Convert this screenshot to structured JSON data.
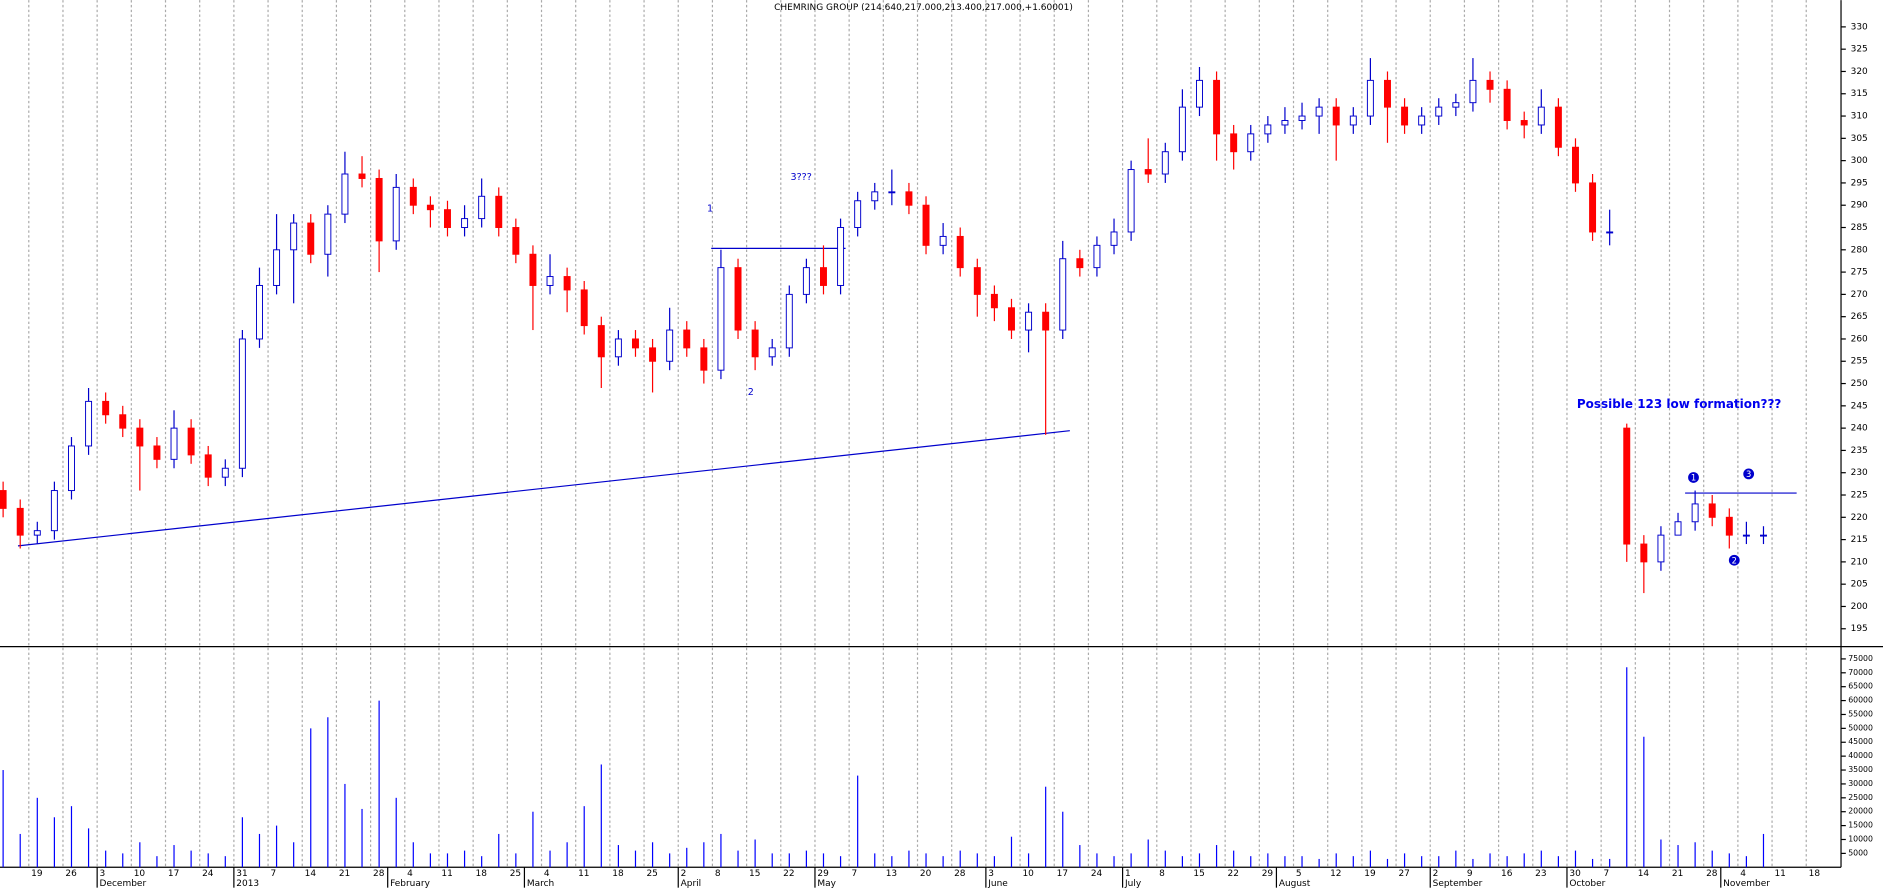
{
  "chart_data": {
    "type": "candlestick",
    "title": "CHEMRING GROUP (214.640,217.000,213.400,217.000,+1.60001)",
    "categories": [
      null,
      null,
      "19",
      null,
      "26",
      null,
      "3",
      null,
      "10",
      null,
      "17",
      null,
      "24",
      null,
      "31",
      null,
      "7",
      null,
      "14",
      null,
      "21",
      null,
      "28",
      null,
      "4",
      null,
      "11",
      null,
      "18",
      null,
      "25",
      null,
      "4",
      null,
      "11",
      null,
      "18",
      null,
      "25",
      null,
      "2",
      null,
      "8",
      null,
      "15",
      null,
      "22",
      null,
      "29",
      null,
      "7",
      null,
      "13",
      null,
      "20",
      null,
      "28",
      null,
      "3",
      null,
      "10",
      null,
      "17",
      null,
      "24",
      null,
      "1",
      null,
      "8",
      null,
      "15",
      null,
      "22",
      null,
      "29",
      null,
      "5",
      null,
      "12",
      null,
      "19",
      null,
      "27",
      null,
      "2",
      null,
      "9",
      null,
      "16",
      null,
      "23",
      null,
      "30",
      null,
      "7",
      null,
      "14",
      null,
      "21",
      null,
      "28",
      null,
      "4",
      null,
      "11",
      null,
      "18",
      null
    ],
    "month_labels": [
      null,
      null,
      null,
      null,
      null,
      null,
      "December",
      null,
      null,
      null,
      null,
      null,
      null,
      null,
      "2013",
      null,
      null,
      null,
      null,
      null,
      null,
      null,
      null,
      "February",
      null,
      null,
      null,
      null,
      null,
      null,
      null,
      "March",
      null,
      null,
      null,
      null,
      null,
      null,
      null,
      null,
      "April",
      null,
      null,
      null,
      null,
      null,
      null,
      null,
      "May",
      null,
      null,
      null,
      null,
      null,
      null,
      null,
      null,
      null,
      "June",
      null,
      null,
      null,
      null,
      null,
      null,
      null,
      "July",
      null,
      null,
      null,
      null,
      null,
      null,
      null,
      null,
      "August",
      null,
      null,
      null,
      null,
      null,
      null,
      null,
      null,
      "September",
      null,
      null,
      null,
      null,
      null,
      null,
      null,
      "October",
      null,
      null,
      null,
      null,
      null,
      null,
      null,
      null,
      "November",
      null,
      null,
      null,
      null,
      null,
      null
    ],
    "open": [
      226,
      222,
      216,
      217,
      226,
      236,
      246,
      243,
      240,
      236,
      233,
      240,
      234,
      229,
      231,
      260,
      272,
      280,
      286,
      279,
      288,
      297,
      296,
      282,
      294,
      290,
      289,
      285,
      287,
      292,
      285,
      279,
      272,
      274,
      271,
      263,
      256,
      260,
      258,
      255,
      262,
      258,
      253,
      276,
      262,
      256,
      258,
      270,
      276,
      272,
      285,
      291,
      293,
      293,
      290,
      281,
      283,
      276,
      270,
      267,
      262,
      266,
      262,
      278,
      276,
      281,
      284,
      298,
      297,
      302,
      312,
      318,
      306,
      302,
      306,
      308,
      309,
      310,
      312,
      308,
      310,
      318,
      312,
      308,
      310,
      312,
      313,
      318,
      316,
      309,
      308,
      312,
      303,
      295,
      284,
      240,
      214,
      210,
      216,
      219,
      223,
      220,
      216,
      216,
      null,
      null,
      null,
      null
    ],
    "high": [
      228,
      224,
      219,
      228,
      238,
      249,
      248,
      245,
      242,
      238,
      244,
      242,
      236,
      233,
      262,
      276,
      288,
      288,
      288,
      290,
      302,
      301,
      298,
      297,
      296,
      292,
      291,
      290,
      296,
      294,
      287,
      281,
      279,
      276,
      273,
      265,
      262,
      262,
      260,
      267,
      264,
      260,
      280,
      278,
      264,
      260,
      272,
      278,
      281,
      287,
      293,
      295,
      298,
      295,
      292,
      286,
      285,
      278,
      272,
      269,
      268,
      268,
      282,
      280,
      283,
      287,
      300,
      305,
      304,
      316,
      321,
      320,
      308,
      308,
      310,
      312,
      313,
      314,
      314,
      312,
      323,
      320,
      314,
      312,
      314,
      315,
      323,
      320,
      318,
      311,
      316,
      314,
      305,
      297,
      289,
      241,
      216,
      218,
      221,
      226,
      225,
      222,
      219,
      218,
      null,
      null,
      null,
      null
    ],
    "low": [
      220,
      213,
      214,
      215,
      224,
      234,
      241,
      238,
      226,
      231,
      231,
      232,
      227,
      227,
      229,
      258,
      270,
      268,
      277,
      274,
      286,
      294,
      275,
      280,
      288,
      285,
      283,
      283,
      285,
      283,
      277,
      262,
      270,
      266,
      261,
      249,
      254,
      256,
      248,
      253,
      256,
      250,
      251,
      260,
      253,
      254,
      256,
      268,
      270,
      270,
      283,
      289,
      290,
      288,
      279,
      279,
      274,
      265,
      264,
      260,
      257,
      238.5,
      260,
      274,
      274,
      279,
      282,
      295,
      295,
      300,
      310,
      300,
      298,
      300,
      304,
      306,
      307,
      306,
      300,
      306,
      308,
      304,
      306,
      306,
      308,
      310,
      311,
      313,
      307,
      305,
      306,
      301,
      293,
      282,
      281,
      210,
      203,
      208,
      216,
      217,
      218,
      213,
      214,
      214,
      null,
      null,
      null,
      null
    ],
    "close": [
      222,
      216,
      217,
      226,
      236,
      246,
      243,
      240,
      236,
      233,
      240,
      234,
      229,
      231,
      260,
      272,
      280,
      286,
      279,
      288,
      297,
      296,
      282,
      294,
      290,
      289,
      285,
      287,
      292,
      285,
      279,
      272,
      274,
      271,
      263,
      256,
      260,
      258,
      255,
      262,
      258,
      253,
      276,
      262,
      256,
      258,
      270,
      276,
      272,
      285,
      291,
      293,
      293,
      290,
      281,
      283,
      276,
      270,
      267,
      262,
      266,
      262,
      278,
      276,
      281,
      284,
      298,
      297,
      302,
      312,
      318,
      306,
      302,
      306,
      308,
      309,
      310,
      312,
      308,
      310,
      318,
      312,
      308,
      310,
      312,
      313,
      318,
      316,
      309,
      308,
      312,
      303,
      295,
      284,
      284,
      214,
      210,
      216,
      219,
      223,
      220,
      216,
      216,
      216,
      null,
      null,
      null,
      null
    ],
    "up_color": "#0000cc",
    "down_color": "#ff0000",
    "ylim": [
      191,
      336
    ],
    "yticks": [
      195,
      200,
      205,
      210,
      215,
      220,
      225,
      230,
      235,
      240,
      245,
      250,
      255,
      260,
      265,
      270,
      275,
      280,
      285,
      290,
      295,
      300,
      305,
      310,
      315,
      320,
      325,
      330
    ],
    "grid": true,
    "volume": {
      "color": "#0000ff",
      "values": [
        35000,
        12000,
        25000,
        18000,
        22000,
        14000,
        6000,
        5000,
        9000,
        4000,
        8000,
        6000,
        5000,
        4000,
        18000,
        12000,
        15000,
        9000,
        50000,
        54000,
        30000,
        21000,
        60000,
        25000,
        9000,
        5000,
        5000,
        6000,
        4000,
        12000,
        5000,
        20000,
        6000,
        9000,
        22000,
        37000,
        8000,
        6000,
        9000,
        5000,
        7000,
        9000,
        12000,
        6000,
        10000,
        5000,
        5000,
        6000,
        5000,
        4000,
        33000,
        5000,
        4000,
        6000,
        5000,
        4000,
        6000,
        5000,
        4000,
        11000,
        5000,
        29000,
        20000,
        8000,
        5000,
        4000,
        5000,
        10000,
        6000,
        4000,
        5000,
        8000,
        6000,
        4000,
        5000,
        4000,
        4000,
        3000,
        5000,
        4000,
        6000,
        3000,
        5000,
        4000,
        4000,
        6000,
        3000,
        5000,
        4000,
        5000,
        6000,
        4000,
        6000,
        3000,
        3000,
        72000,
        47000,
        10000,
        8000,
        9000,
        6000,
        5000,
        4000,
        12000,
        null,
        null,
        null,
        null
      ],
      "ylim": [
        0,
        79000
      ],
      "yticks": [
        5000,
        10000,
        15000,
        20000,
        25000,
        30000,
        35000,
        40000,
        45000,
        50000,
        55000,
        60000,
        65000,
        70000,
        75000
      ]
    },
    "annotations": [
      "1",
      "2",
      "3???",
      "Possible 123 low formation???",
      "1",
      "3",
      "2"
    ]
  }
}
